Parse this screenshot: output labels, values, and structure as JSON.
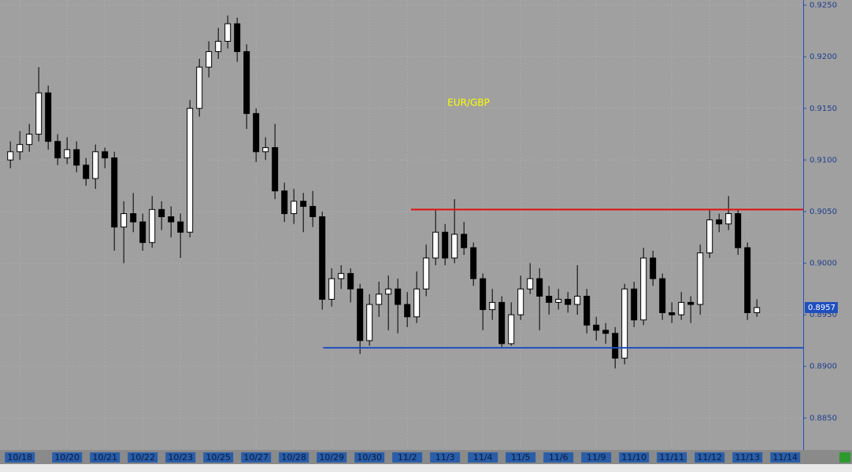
{
  "chart_data": {
    "type": "candlestick",
    "title": "EUR/GBP",
    "up_color": "#ffffff",
    "down_color": "#000000",
    "open": [
      0.91,
      0.9108,
      0.9115,
      0.9125,
      0.9165,
      0.9118,
      0.9102,
      0.911,
      0.9095,
      0.9082,
      0.9108,
      0.9102,
      0.9035,
      0.9048,
      0.904,
      0.902,
      0.9052,
      0.9045,
      0.904,
      0.903,
      0.915,
      0.919,
      0.9205,
      0.9215,
      0.9232,
      0.9205,
      0.9145,
      0.9108,
      0.9112,
      0.907,
      0.9048,
      0.906,
      0.9055,
      0.9045,
      0.8965,
      0.8985,
      0.899,
      0.8975,
      0.8925,
      0.896,
      0.897,
      0.8975,
      0.896,
      0.8948,
      0.8975,
      0.9005,
      0.903,
      0.9005,
      0.9028,
      0.9015,
      0.8985,
      0.8955,
      0.8962,
      0.8922,
      0.895,
      0.8975,
      0.8985,
      0.8968,
      0.8962,
      0.8965,
      0.896,
      0.8968,
      0.894,
      0.8935,
      0.8932,
      0.8908,
      0.8975,
      0.8945,
      0.9005,
      0.8985,
      0.8952,
      0.895,
      0.8962,
      0.896,
      0.901,
      0.9042,
      0.9038,
      0.9048,
      0.9015,
      0.8952
    ],
    "high": [
      0.9118,
      0.9128,
      0.9135,
      0.919,
      0.9172,
      0.9125,
      0.9122,
      0.9118,
      0.9102,
      0.9115,
      0.9112,
      0.9108,
      0.906,
      0.9068,
      0.9048,
      0.9065,
      0.906,
      0.9055,
      0.9048,
      0.9158,
      0.9198,
      0.9215,
      0.9228,
      0.924,
      0.9238,
      0.9212,
      0.915,
      0.9122,
      0.9135,
      0.9078,
      0.9072,
      0.9068,
      0.907,
      0.905,
      0.8995,
      0.8998,
      0.8995,
      0.898,
      0.897,
      0.8982,
      0.8988,
      0.8985,
      0.8972,
      0.8992,
      0.9018,
      0.9052,
      0.9038,
      0.9062,
      0.904,
      0.902,
      0.899,
      0.8975,
      0.8968,
      0.8962,
      0.8988,
      0.9,
      0.8995,
      0.8978,
      0.8975,
      0.8972,
      0.8998,
      0.8975,
      0.8948,
      0.8942,
      0.8938,
      0.898,
      0.8982,
      0.9015,
      0.9012,
      0.899,
      0.8962,
      0.8972,
      0.8968,
      0.9018,
      0.9052,
      0.9048,
      0.9065,
      0.9052,
      0.902,
      0.8965
    ],
    "low": [
      0.9092,
      0.91,
      0.9108,
      0.9118,
      0.911,
      0.9095,
      0.9096,
      0.9088,
      0.9075,
      0.9072,
      0.9092,
      0.9012,
      0.9,
      0.903,
      0.9012,
      0.9015,
      0.9032,
      0.9025,
      0.9005,
      0.9025,
      0.9142,
      0.918,
      0.9198,
      0.9208,
      0.9195,
      0.913,
      0.9098,
      0.91,
      0.9062,
      0.904,
      0.9038,
      0.903,
      0.9035,
      0.8955,
      0.8958,
      0.8975,
      0.8962,
      0.8912,
      0.892,
      0.8948,
      0.8935,
      0.8932,
      0.8938,
      0.8942,
      0.8968,
      0.8998,
      0.8998,
      0.9,
      0.9008,
      0.8978,
      0.8935,
      0.8945,
      0.8918,
      0.892,
      0.8945,
      0.897,
      0.8935,
      0.895,
      0.8955,
      0.8952,
      0.895,
      0.8932,
      0.8925,
      0.8922,
      0.8898,
      0.8902,
      0.8938,
      0.894,
      0.8978,
      0.8945,
      0.8942,
      0.8945,
      0.8942,
      0.895,
      0.9005,
      0.903,
      0.9032,
      0.9008,
      0.8945,
      0.8948
    ],
    "close": [
      0.9108,
      0.9115,
      0.9125,
      0.9165,
      0.9118,
      0.9102,
      0.911,
      0.9095,
      0.9082,
      0.9108,
      0.9102,
      0.9035,
      0.9048,
      0.904,
      0.902,
      0.9052,
      0.9045,
      0.904,
      0.903,
      0.915,
      0.919,
      0.9205,
      0.9215,
      0.9232,
      0.9205,
      0.9145,
      0.9108,
      0.9112,
      0.907,
      0.9048,
      0.906,
      0.9055,
      0.9045,
      0.8965,
      0.8985,
      0.899,
      0.8975,
      0.8925,
      0.896,
      0.897,
      0.8975,
      0.896,
      0.8948,
      0.8975,
      0.9005,
      0.903,
      0.9005,
      0.9028,
      0.9015,
      0.8985,
      0.8955,
      0.8962,
      0.8922,
      0.895,
      0.8975,
      0.8985,
      0.8968,
      0.8962,
      0.8965,
      0.896,
      0.8968,
      0.894,
      0.8935,
      0.8932,
      0.8908,
      0.8975,
      0.8945,
      0.9005,
      0.8985,
      0.8952,
      0.895,
      0.8962,
      0.896,
      0.901,
      0.9042,
      0.9038,
      0.9048,
      0.9015,
      0.8952,
      0.8957
    ],
    "xlim": [
      -1.1,
      83.9
    ],
    "xticks": [
      {
        "value": 1,
        "label": "10/18"
      },
      {
        "value": 6,
        "label": "10/20"
      },
      {
        "value": 10,
        "label": "10/21"
      },
      {
        "value": 14,
        "label": "10/22"
      },
      {
        "value": 18,
        "label": "10/23"
      },
      {
        "value": 22,
        "label": "10/25"
      },
      {
        "value": 26,
        "label": "10/27"
      },
      {
        "value": 30,
        "label": "10/28"
      },
      {
        "value": 34,
        "label": "10/29"
      },
      {
        "value": 38,
        "label": "10/30"
      },
      {
        "value": 42,
        "label": "11/2"
      },
      {
        "value": 46,
        "label": "11/3"
      },
      {
        "value": 50,
        "label": "11/4"
      },
      {
        "value": 54,
        "label": "11/5"
      },
      {
        "value": 58,
        "label": "11/6"
      },
      {
        "value": 62,
        "label": "11/9"
      },
      {
        "value": 66,
        "label": "11/10"
      },
      {
        "value": 70,
        "label": "11/11"
      },
      {
        "value": 74,
        "label": "11/12"
      },
      {
        "value": 78,
        "label": "11/13"
      },
      {
        "value": 82,
        "label": "11/14"
      }
    ],
    "ylim": [
      0.8819,
      0.9255
    ],
    "yticks": [
      {
        "value": 0.925,
        "label": "0.9250"
      },
      {
        "value": 0.92,
        "label": "0.9200"
      },
      {
        "value": 0.915,
        "label": "0.9150"
      },
      {
        "value": 0.91,
        "label": "0.9100"
      },
      {
        "value": 0.905,
        "label": "0.9050"
      },
      {
        "value": 0.9,
        "label": "0.9000"
      },
      {
        "value": 0.895,
        "label": "0.8950"
      },
      {
        "value": 0.89,
        "label": "0.8900"
      },
      {
        "value": 0.885,
        "label": "0.8850"
      }
    ],
    "grid": true,
    "last_price": {
      "value": 0.8957,
      "label": "0.8957"
    },
    "annotations": [
      {
        "value": 0.9052,
        "from": 42.4,
        "color": "#e01010"
      },
      {
        "value": 0.8918,
        "from": 33.1,
        "color": "#1f4fbf"
      }
    ]
  }
}
